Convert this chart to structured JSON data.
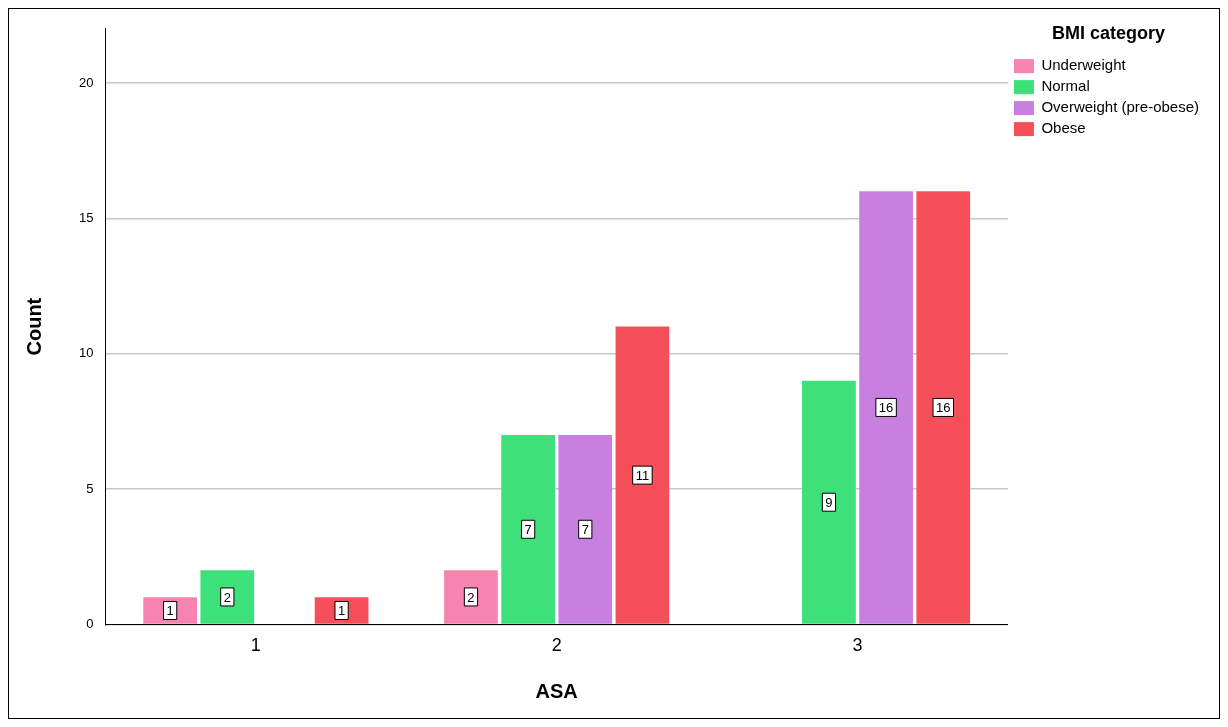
{
  "chart_data": {
    "type": "bar",
    "xlabel": "ASA",
    "ylabel": "Count",
    "legend_title": "BMI category",
    "categories": [
      "1",
      "2",
      "3"
    ],
    "series": [
      {
        "name": "Underweight",
        "color": "#f783b0",
        "values": [
          1,
          2,
          null
        ]
      },
      {
        "name": "Normal",
        "color": "#3ee07a",
        "values": [
          2,
          7,
          9
        ]
      },
      {
        "name": "Overweight (pre-obese)",
        "color": "#c77fe0",
        "values": [
          null,
          7,
          16
        ]
      },
      {
        "name": "Obese",
        "color": "#f5505a",
        "values": [
          1,
          11,
          16
        ]
      }
    ],
    "ylim": [
      0,
      22
    ],
    "yticks": [
      0,
      5,
      10,
      15,
      20
    ],
    "grid": "y",
    "legend": "top right",
    "data_labels": true
  }
}
